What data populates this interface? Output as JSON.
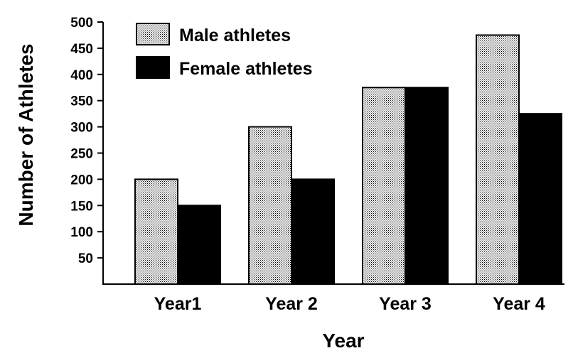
{
  "chart_data": {
    "type": "bar",
    "title": "",
    "xlabel": "Year",
    "ylabel": "Number of Athletes",
    "categories": [
      "Year 1",
      "Year 2",
      "Year 3",
      "Year 4"
    ],
    "category_labels": [
      "Year1",
      "Year 2",
      "Year 3",
      "Year 4"
    ],
    "series": [
      {
        "name": "Male athletes",
        "values": [
          200,
          300,
          375,
          475
        ],
        "fill": "dotted-gray"
      },
      {
        "name": "Female athletes",
        "values": [
          150,
          200,
          375,
          325
        ],
        "fill": "#000000"
      }
    ],
    "ylim": [
      0,
      500
    ],
    "yticks": [
      50,
      100,
      150,
      200,
      250,
      300,
      350,
      400,
      450,
      500
    ],
    "grid": false,
    "legend_position": "top-left"
  }
}
